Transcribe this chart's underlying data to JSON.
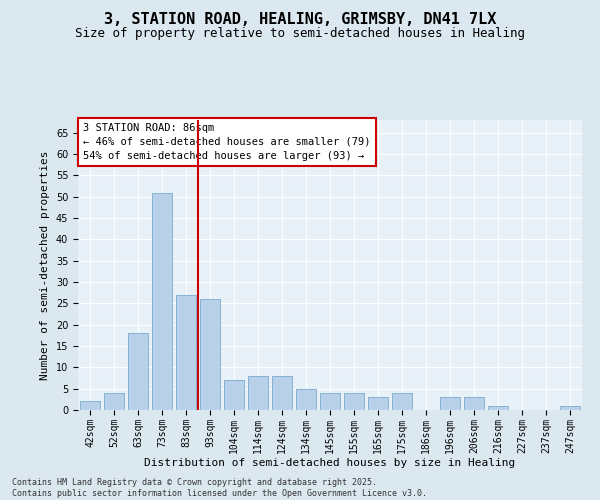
{
  "title1": "3, STATION ROAD, HEALING, GRIMSBY, DN41 7LX",
  "title2": "Size of property relative to semi-detached houses in Healing",
  "xlabel": "Distribution of semi-detached houses by size in Healing",
  "ylabel": "Number of semi-detached properties",
  "categories": [
    "42sqm",
    "52sqm",
    "63sqm",
    "73sqm",
    "83sqm",
    "93sqm",
    "104sqm",
    "114sqm",
    "124sqm",
    "134sqm",
    "145sqm",
    "155sqm",
    "165sqm",
    "175sqm",
    "186sqm",
    "196sqm",
    "206sqm",
    "216sqm",
    "227sqm",
    "237sqm",
    "247sqm"
  ],
  "values": [
    2,
    4,
    18,
    51,
    27,
    26,
    7,
    8,
    8,
    5,
    4,
    4,
    3,
    4,
    0,
    3,
    3,
    1,
    0,
    0,
    1
  ],
  "bar_color": "#b8d0e8",
  "bar_edge_color": "#7aaace",
  "bar_width": 0.85,
  "vline_color": "#cc0000",
  "vline_index": 4.5,
  "annotation_title": "3 STATION ROAD: 86sqm",
  "annotation_line1": "← 46% of semi-detached houses are smaller (79)",
  "annotation_line2": "54% of semi-detached houses are larger (93) →",
  "annotation_box_color": "#cc0000",
  "ylim": [
    0,
    68
  ],
  "yticks": [
    0,
    5,
    10,
    15,
    20,
    25,
    30,
    35,
    40,
    45,
    50,
    55,
    60,
    65
  ],
  "bg_color": "#dce8f0",
  "plot_bg_color": "#e8f0f8",
  "footer1": "Contains HM Land Registry data © Crown copyright and database right 2025.",
  "footer2": "Contains public sector information licensed under the Open Government Licence v3.0.",
  "title_fontsize": 11,
  "subtitle_fontsize": 9,
  "axis_label_fontsize": 8,
  "tick_fontsize": 7,
  "annotation_fontsize": 7.5,
  "footer_fontsize": 6
}
